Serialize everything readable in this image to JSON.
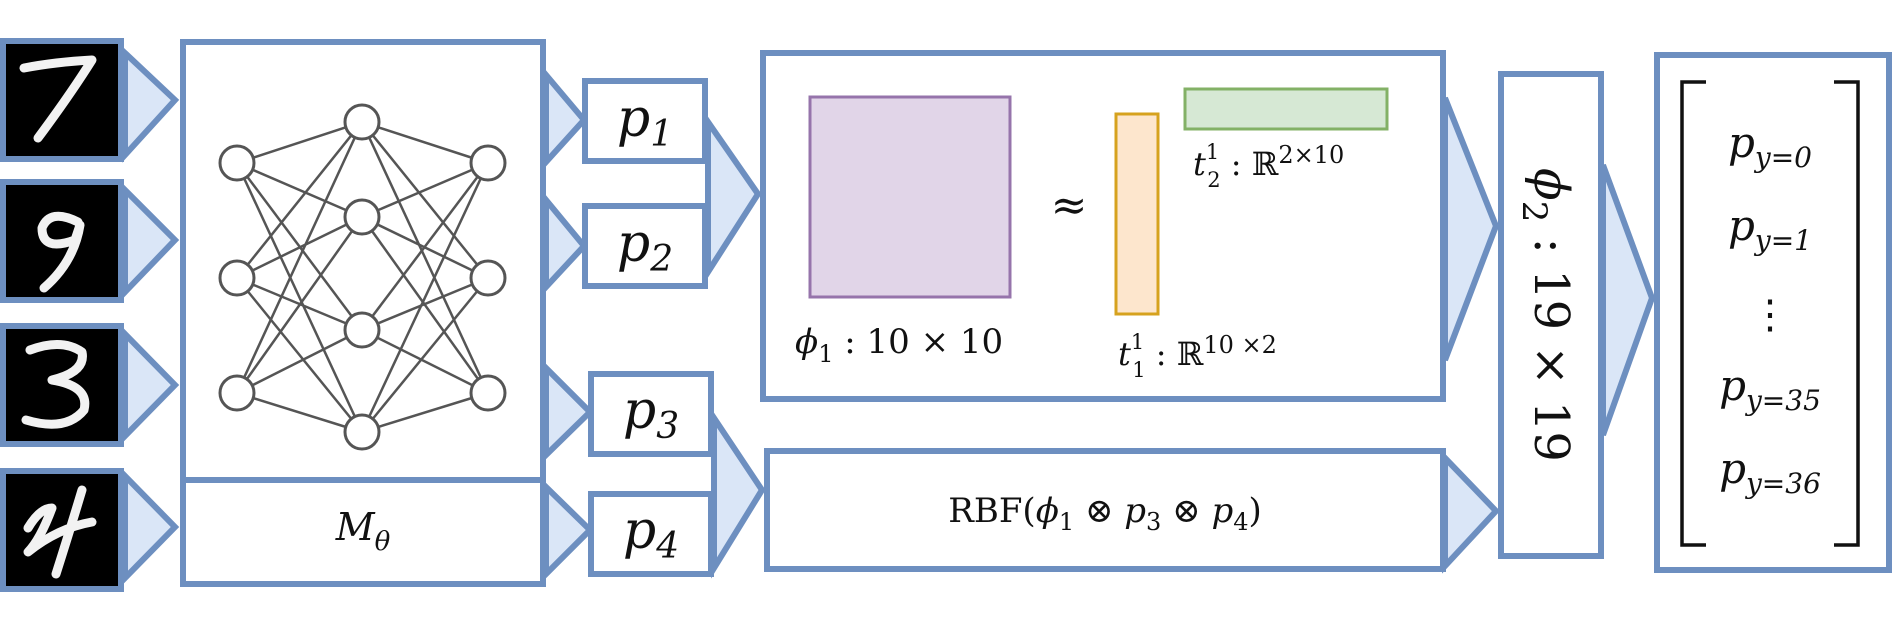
{
  "inputs": {
    "digits": [
      "7",
      "9",
      "3",
      "4"
    ]
  },
  "network": {
    "label_base": "M",
    "label_sub": "θ"
  },
  "probs": [
    {
      "base": "p",
      "sub": "1"
    },
    {
      "base": "p",
      "sub": "2"
    },
    {
      "base": "p",
      "sub": "3"
    },
    {
      "base": "p",
      "sub": "4"
    }
  ],
  "factorization": {
    "approx_symbol": "≈",
    "phi1_label": {
      "base": "ϕ",
      "sub": "1",
      "rest": " : 10 × 10"
    },
    "t1_label": {
      "base": "t",
      "sup": "1",
      "sub": "1",
      "rest": " : ℝ",
      "exp": "10 ×2"
    },
    "t2_label": {
      "base": "t",
      "sup": "1",
      "sub": "2",
      "rest": " : ℝ",
      "exp": "2×10"
    },
    "colors": {
      "phi1_fill": "#e1d5e8",
      "phi1_stroke": "#9674ab",
      "t1_fill": "#fde6cd",
      "t1_stroke": "#d6a21e",
      "t2_fill": "#d6e8d4",
      "t2_stroke": "#83b166"
    }
  },
  "rbf": {
    "prefix": "RBF(",
    "phi": "ϕ",
    "phi_sub": "1",
    "otimes": " ⊗ ",
    "p3": "p",
    "p3_sub": "3",
    "p4": "p",
    "p4_sub": "4",
    "suffix": ")"
  },
  "phi2": {
    "base": "ϕ",
    "sub": "2",
    "rest": " : 19 × 19"
  },
  "output": {
    "entries": [
      {
        "base": "p",
        "sub": "y=0"
      },
      {
        "base": "p",
        "sub": "y=1"
      },
      {
        "dots": "⋮"
      },
      {
        "base": "p",
        "sub": "y=35"
      },
      {
        "base": "p",
        "sub": "y=36"
      }
    ]
  },
  "colors": {
    "box_stroke": "#6d8fc0",
    "arrow_fill": "#dae6f7"
  }
}
